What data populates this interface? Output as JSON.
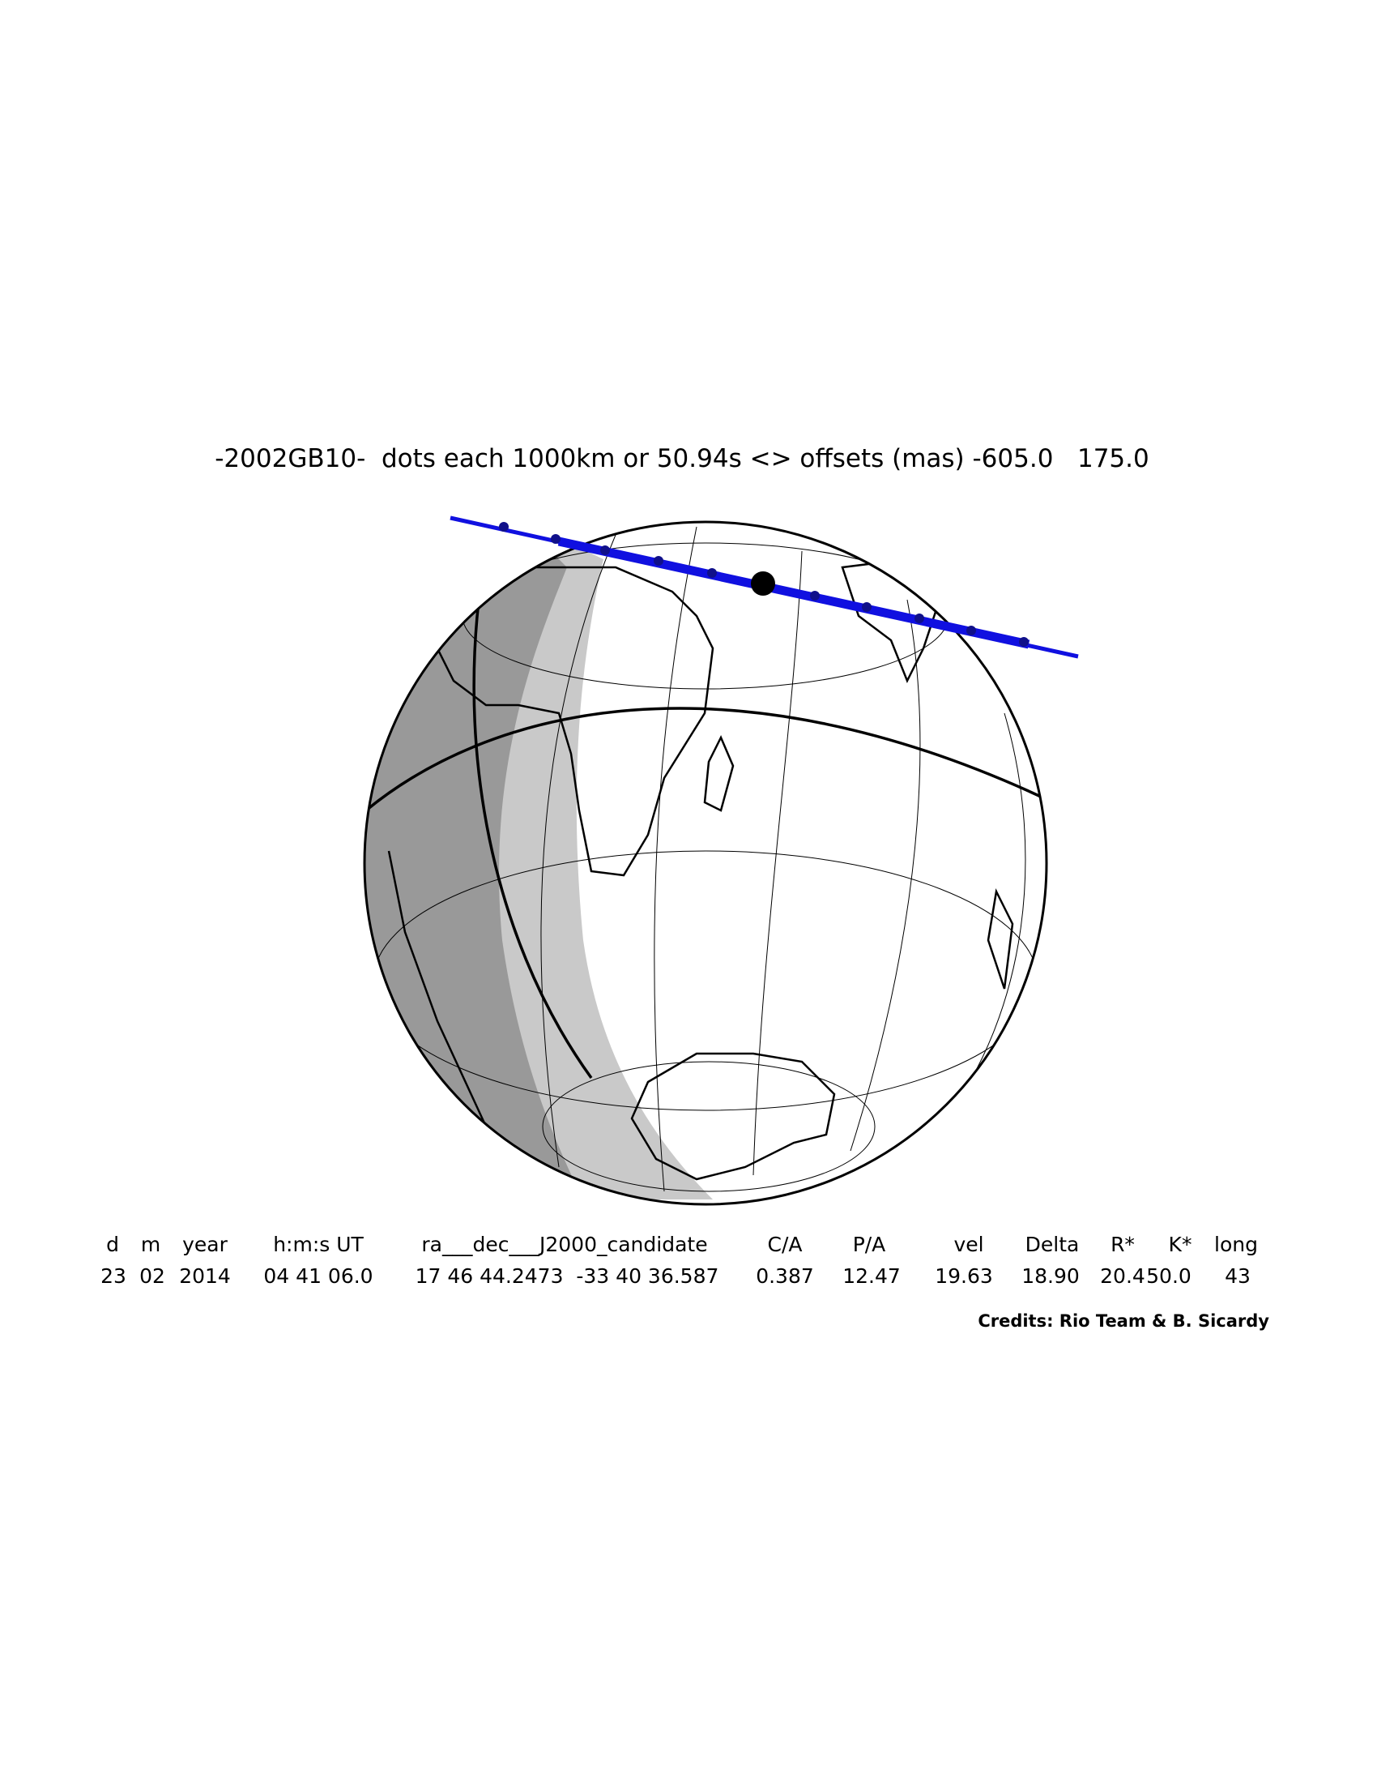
{
  "title": "-2002GB10-  dots each 1000km or 50.94s <> offsets (mas) -605.0   175.0",
  "table": {
    "headers": [
      "d",
      "m",
      "year",
      "h:m:s UT",
      "ra___dec___J2000_candidate",
      "C/A",
      "P/A",
      "vel",
      "Delta",
      "R*",
      "K*",
      "long"
    ],
    "values": [
      "23",
      "02",
      "2014",
      "04 41 06.0",
      "17 46 44.2473  -33 40 36.587",
      "0.387",
      "12.47",
      "19.63",
      "18.90",
      "20.4",
      "50.0",
      "43"
    ]
  },
  "credits": "Credits: Rio Team & B. Sicardy"
}
